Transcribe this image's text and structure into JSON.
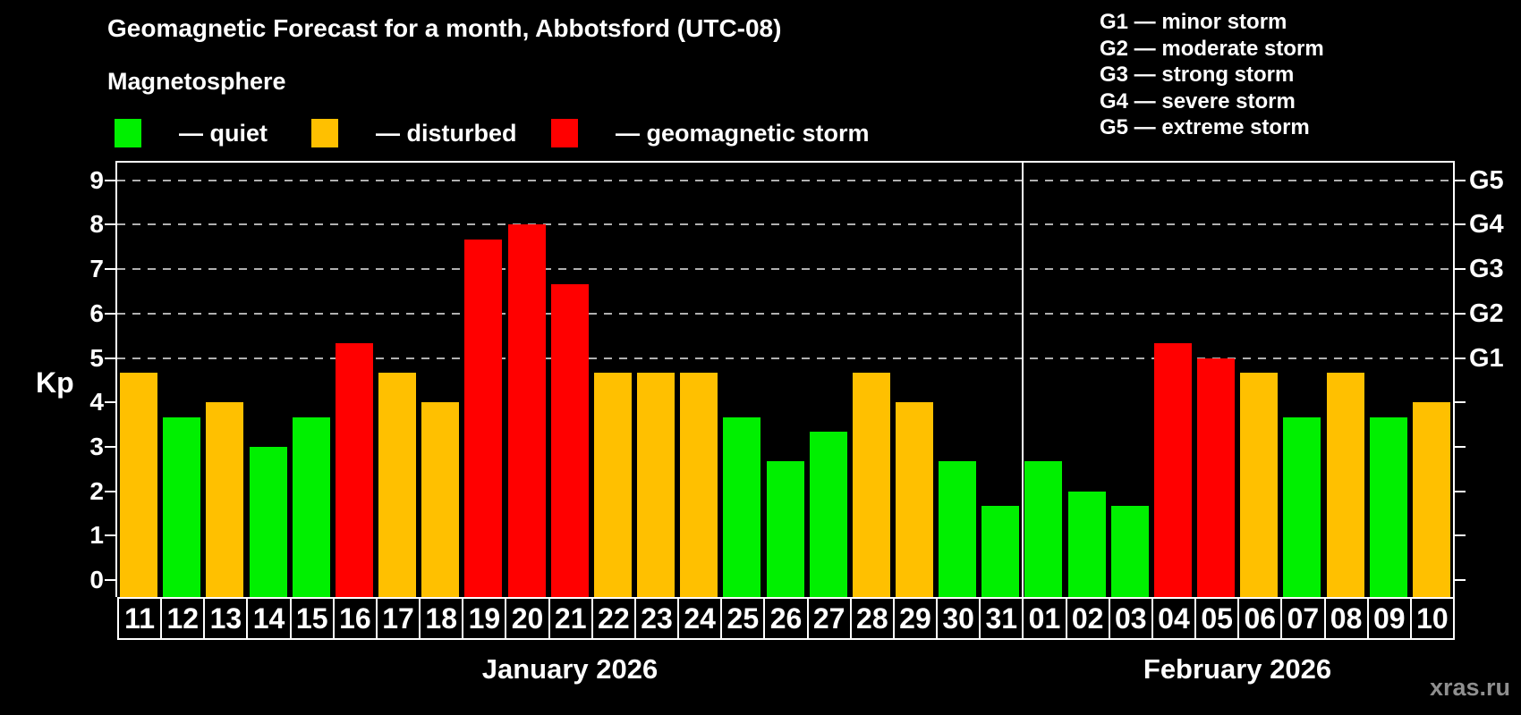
{
  "title": "Geomagnetic Forecast for a month, Abbotsford (UTC-08)",
  "subtitle": "Magnetosphere",
  "legend": {
    "items": [
      {
        "key": "quiet",
        "label": "— quiet",
        "color": "#00f000",
        "x": 128
      },
      {
        "key": "disturbed",
        "label": "— disturbed",
        "color": "#ffc000",
        "x": 348
      },
      {
        "key": "storm",
        "label": "— geomagnetic storm",
        "color": "#ff0000",
        "x": 616
      }
    ]
  },
  "storm_scale_legend": [
    "G1 — minor storm",
    "G2 — moderate storm",
    "G3 — strong storm",
    "G4 — severe storm",
    "G5 — extreme storm"
  ],
  "watermark": "xras.ru",
  "colors": {
    "background": "#000000",
    "quiet": "#00f000",
    "disturbed": "#ffc000",
    "storm": "#ff0000",
    "grid": "#b0b0b0",
    "frame": "#ffffff",
    "watermark": "#8f8f8f"
  },
  "chart_data": {
    "type": "bar",
    "title": "Geomagnetic Forecast for a month, Abbotsford (UTC-08)",
    "ylabel": "Kp",
    "ylim": [
      0,
      9
    ],
    "grid": "dashed horizontal at Kp 5-9",
    "y_ticks": [
      0,
      1,
      2,
      3,
      4,
      5,
      6,
      7,
      8,
      9
    ],
    "gridlines_at": [
      5,
      6,
      7,
      8,
      9
    ],
    "right_axis_labels": [
      {
        "kp": 5,
        "label": "G1"
      },
      {
        "kp": 6,
        "label": "G2"
      },
      {
        "kp": 7,
        "label": "G3"
      },
      {
        "kp": 8,
        "label": "G4"
      },
      {
        "kp": 9,
        "label": "G5"
      }
    ],
    "months": [
      {
        "label": "January 2026",
        "start_index": 0,
        "count": 21
      },
      {
        "label": "February 2026",
        "start_index": 21,
        "count": 10
      }
    ],
    "bars": [
      {
        "day": "11",
        "value": 4.67,
        "status": "disturbed"
      },
      {
        "day": "12",
        "value": 3.67,
        "status": "quiet"
      },
      {
        "day": "13",
        "value": 4.0,
        "status": "disturbed"
      },
      {
        "day": "14",
        "value": 3.0,
        "status": "quiet"
      },
      {
        "day": "15",
        "value": 3.67,
        "status": "quiet"
      },
      {
        "day": "16",
        "value": 5.33,
        "status": "storm"
      },
      {
        "day": "17",
        "value": 4.67,
        "status": "disturbed"
      },
      {
        "day": "18",
        "value": 4.0,
        "status": "disturbed"
      },
      {
        "day": "19",
        "value": 7.67,
        "status": "storm"
      },
      {
        "day": "20",
        "value": 8.0,
        "status": "storm"
      },
      {
        "day": "21",
        "value": 6.67,
        "status": "storm"
      },
      {
        "day": "22",
        "value": 4.67,
        "status": "disturbed"
      },
      {
        "day": "23",
        "value": 4.67,
        "status": "disturbed"
      },
      {
        "day": "24",
        "value": 4.67,
        "status": "disturbed"
      },
      {
        "day": "25",
        "value": 3.67,
        "status": "quiet"
      },
      {
        "day": "26",
        "value": 2.67,
        "status": "quiet"
      },
      {
        "day": "27",
        "value": 3.33,
        "status": "quiet"
      },
      {
        "day": "28",
        "value": 4.67,
        "status": "disturbed"
      },
      {
        "day": "29",
        "value": 4.0,
        "status": "disturbed"
      },
      {
        "day": "30",
        "value": 2.67,
        "status": "quiet"
      },
      {
        "day": "31",
        "value": 1.67,
        "status": "quiet"
      },
      {
        "day": "01",
        "value": 2.67,
        "status": "quiet"
      },
      {
        "day": "02",
        "value": 2.0,
        "status": "quiet"
      },
      {
        "day": "03",
        "value": 1.67,
        "status": "quiet"
      },
      {
        "day": "04",
        "value": 5.33,
        "status": "storm"
      },
      {
        "day": "05",
        "value": 5.0,
        "status": "storm"
      },
      {
        "day": "06",
        "value": 4.67,
        "status": "disturbed"
      },
      {
        "day": "07",
        "value": 3.67,
        "status": "quiet"
      },
      {
        "day": "08",
        "value": 4.67,
        "status": "disturbed"
      },
      {
        "day": "09",
        "value": 3.67,
        "status": "quiet"
      },
      {
        "day": "10",
        "value": 4.0,
        "status": "disturbed"
      }
    ]
  }
}
